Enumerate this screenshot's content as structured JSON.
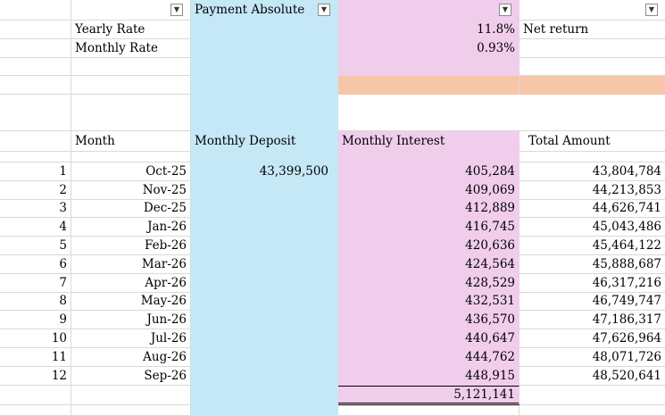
{
  "header": {
    "col_b_label": "Payment Absolute",
    "col_e_label": "Net return",
    "filter_icon": "chevron-down-icon"
  },
  "rates": {
    "yearly_label": "Yearly Rate",
    "yearly_value": "11.8%",
    "monthly_label": "Monthly Rate",
    "monthly_value": "0.93%"
  },
  "columns": {
    "month": "Month",
    "deposit": "Monthly Deposit",
    "interest": "Monthly Interest",
    "total": "Total Amount"
  },
  "rows": [
    {
      "n": "1",
      "month": "Oct-25",
      "deposit": "43,399,500",
      "interest": "405,284",
      "total": "43,804,784"
    },
    {
      "n": "2",
      "month": "Nov-25",
      "deposit": "",
      "interest": "409,069",
      "total": "44,213,853"
    },
    {
      "n": "3",
      "month": "Dec-25",
      "deposit": "",
      "interest": "412,889",
      "total": "44,626,741"
    },
    {
      "n": "4",
      "month": "Jan-26",
      "deposit": "",
      "interest": "416,745",
      "total": "45,043,486"
    },
    {
      "n": "5",
      "month": "Feb-26",
      "deposit": "",
      "interest": "420,636",
      "total": "45,464,122"
    },
    {
      "n": "6",
      "month": "Mar-26",
      "deposit": "",
      "interest": "424,564",
      "total": "45,888,687"
    },
    {
      "n": "7",
      "month": "Apr-26",
      "deposit": "",
      "interest": "428,529",
      "total": "46,317,216"
    },
    {
      "n": "8",
      "month": "May-26",
      "deposit": "",
      "interest": "432,531",
      "total": "46,749,747"
    },
    {
      "n": "9",
      "month": "Jun-26",
      "deposit": "",
      "interest": "436,570",
      "total": "47,186,317"
    },
    {
      "n": "10",
      "month": "Jul-26",
      "deposit": "",
      "interest": "440,647",
      "total": "47,626,964"
    },
    {
      "n": "11",
      "month": "Aug-26",
      "deposit": "",
      "interest": "444,762",
      "total": "48,071,726"
    },
    {
      "n": "12",
      "month": "Sep-26",
      "deposit": "",
      "interest": "448,915",
      "total": "48,520,641"
    }
  ],
  "totals": {
    "interest_sum": "5,121,141"
  },
  "colors": {
    "deposit_fill": "#c5e8f7",
    "interest_fill": "#f1cdec",
    "accent_bar": "#f7c6a9"
  }
}
